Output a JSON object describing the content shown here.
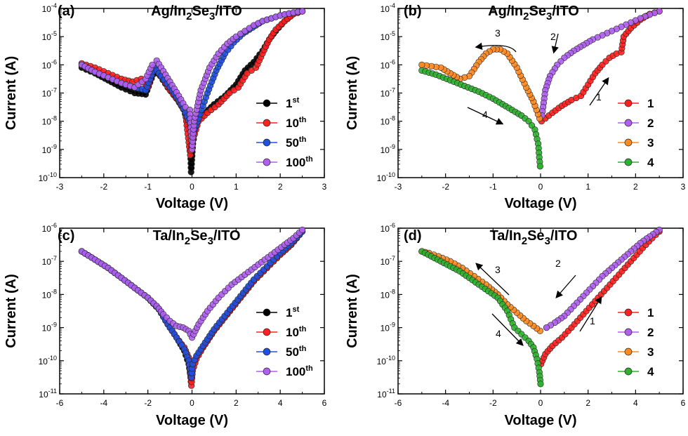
{
  "chart_data": [
    {
      "type": "scatter",
      "panel": "(a)",
      "title": "Ag/In2Se3/ITO",
      "title_parts": [
        "Ag/In",
        "2",
        "Se",
        "3",
        "/ITO"
      ],
      "xlabel": "Voltage (V)",
      "ylabel": "Current (A)",
      "xlim": [
        -3,
        3
      ],
      "ylim_exp": [
        -10,
        -4
      ],
      "y_scale": "log",
      "xticks": [
        "-3",
        "-2",
        "-1",
        "0",
        "1",
        "2",
        "3"
      ],
      "legend_position": "right-middle",
      "series": [
        {
          "name": "1",
          "sup": "st",
          "color": "#000000",
          "x": [
            -2.5,
            -2.2,
            -1.9,
            -1.6,
            -1.3,
            -1.05,
            -0.85,
            -0.72,
            -0.55,
            -0.35,
            -0.18,
            -0.05,
            -0.02,
            0.02,
            0.1,
            0.3,
            0.5,
            0.75,
            1.0,
            1.2,
            1.4,
            1.6,
            1.75,
            1.9,
            2.1,
            2.3,
            2.5
          ],
          "y": [
            -6.1,
            -6.3,
            -6.55,
            -6.8,
            -7.0,
            -7.05,
            -6.2,
            -6.4,
            -6.8,
            -7.2,
            -7.6,
            -8.4,
            -9.8,
            -8.8,
            -8.0,
            -7.7,
            -7.4,
            -7.1,
            -6.7,
            -6.2,
            -5.9,
            -5.5,
            -5.1,
            -4.8,
            -4.45,
            -4.2,
            -4.1
          ]
        },
        {
          "name": "10",
          "sup": "th",
          "color": "#ff2020",
          "x": [
            -2.5,
            -2.2,
            -1.9,
            -1.6,
            -1.35,
            -1.15,
            -1.0,
            -0.85,
            -0.7,
            -0.5,
            -0.3,
            -0.15,
            -0.04,
            0.03,
            0.15,
            0.35,
            0.6,
            0.85,
            1.05,
            1.25,
            1.45,
            1.6,
            1.75,
            1.9,
            2.1,
            2.3,
            2.5
          ],
          "y": [
            -5.95,
            -6.1,
            -6.3,
            -6.5,
            -6.6,
            -6.5,
            -6.8,
            -6.1,
            -6.4,
            -6.9,
            -7.3,
            -7.7,
            -9.2,
            -8.6,
            -8.0,
            -7.7,
            -7.4,
            -7.0,
            -6.8,
            -6.3,
            -6.1,
            -5.6,
            -5.1,
            -4.75,
            -4.45,
            -4.2,
            -4.1
          ]
        },
        {
          "name": "50",
          "sup": "th",
          "color": "#2050e0",
          "x": [
            -2.5,
            -2.2,
            -1.9,
            -1.6,
            -1.3,
            -1.05,
            -0.85,
            -0.7,
            -0.5,
            -0.3,
            -0.15,
            -0.04,
            0.03,
            0.15,
            0.35,
            0.55,
            0.75,
            0.95,
            1.15,
            1.3,
            1.45,
            1.6,
            1.8,
            2.0,
            2.2,
            2.4,
            2.5
          ],
          "y": [
            -6.0,
            -6.25,
            -6.45,
            -6.65,
            -6.8,
            -6.9,
            -6.1,
            -6.4,
            -6.8,
            -7.25,
            -7.7,
            -8.1,
            -8.4,
            -7.9,
            -7.0,
            -6.2,
            -5.6,
            -5.2,
            -4.9,
            -4.75,
            -4.6,
            -4.45,
            -4.35,
            -4.25,
            -4.18,
            -4.12,
            -4.1
          ]
        },
        {
          "name": "100",
          "sup": "th",
          "color": "#b060f0",
          "x": [
            -2.5,
            -2.2,
            -1.9,
            -1.6,
            -1.3,
            -1.05,
            -0.9,
            -0.8,
            -0.7,
            -0.5,
            -0.3,
            -0.15,
            -0.05,
            0.0,
            0.05,
            0.2,
            0.4,
            0.6,
            0.8,
            1.0,
            1.2,
            1.4,
            1.6,
            1.8,
            2.0,
            2.2,
            2.4,
            2.5
          ],
          "y": [
            -6.0,
            -6.25,
            -6.45,
            -6.65,
            -6.8,
            -6.5,
            -6.0,
            -5.85,
            -6.1,
            -6.6,
            -7.1,
            -7.5,
            -7.6,
            -9.0,
            -8.0,
            -6.9,
            -6.1,
            -5.6,
            -5.25,
            -5.0,
            -4.8,
            -4.6,
            -4.45,
            -4.35,
            -4.25,
            -4.18,
            -4.12,
            -4.1
          ]
        }
      ]
    },
    {
      "type": "scatter",
      "panel": "(b)",
      "title": "Ag/In2Se3/ITO",
      "title_parts": [
        "Ag/In",
        "2",
        "Se",
        "3",
        "/ITO"
      ],
      "xlabel": "Voltage (V)",
      "ylabel": "Current (A)",
      "xlim": [
        -3,
        3
      ],
      "ylim_exp": [
        -10,
        -4
      ],
      "y_scale": "log",
      "xticks": [
        "-3",
        "-2",
        "-1",
        "0",
        "1",
        "2",
        "3"
      ],
      "legend_position": "right-bottom",
      "annotations": [
        "1",
        "2",
        "3",
        "4"
      ],
      "series": [
        {
          "name": "1",
          "color": "#ff2020",
          "x": [
            0.02,
            0.1,
            0.25,
            0.45,
            0.65,
            0.85,
            1.0,
            1.15,
            1.3,
            1.45,
            1.6,
            1.7,
            1.75,
            1.9,
            2.1,
            2.3,
            2.5
          ],
          "y": [
            -8.0,
            -7.9,
            -7.7,
            -7.45,
            -7.25,
            -7.1,
            -6.7,
            -6.3,
            -6.0,
            -5.75,
            -5.6,
            -5.55,
            -5.0,
            -4.7,
            -4.4,
            -4.2,
            -4.1
          ]
        },
        {
          "name": "2",
          "color": "#b060f0",
          "x": [
            2.5,
            2.3,
            2.1,
            1.9,
            1.7,
            1.5,
            1.3,
            1.1,
            0.9,
            0.7,
            0.5,
            0.35,
            0.2,
            0.1,
            0.03
          ],
          "y": [
            -4.1,
            -4.22,
            -4.35,
            -4.5,
            -4.65,
            -4.8,
            -4.95,
            -5.1,
            -5.3,
            -5.5,
            -5.75,
            -6.0,
            -6.4,
            -6.9,
            -7.8
          ]
        },
        {
          "name": "3",
          "color": "#ff8a20",
          "x": [
            -0.02,
            -0.15,
            -0.3,
            -0.5,
            -0.7,
            -0.85,
            -1.0,
            -1.15,
            -1.3,
            -1.5,
            -1.7,
            -1.9,
            -2.1,
            -2.3,
            -2.5
          ],
          "y": [
            -7.9,
            -7.3,
            -6.8,
            -6.1,
            -5.6,
            -5.45,
            -5.45,
            -5.6,
            -5.9,
            -6.4,
            -6.5,
            -6.3,
            -6.1,
            -6.05,
            -6.0
          ]
        },
        {
          "name": "4",
          "color": "#30b030",
          "x": [
            -2.5,
            -2.2,
            -1.9,
            -1.6,
            -1.3,
            -1.0,
            -0.8,
            -0.6,
            -0.4,
            -0.25,
            -0.12,
            -0.05,
            -0.01
          ],
          "y": [
            -6.2,
            -6.35,
            -6.55,
            -6.75,
            -6.95,
            -7.2,
            -7.4,
            -7.6,
            -7.8,
            -8.0,
            -8.3,
            -8.8,
            -9.6
          ]
        }
      ]
    },
    {
      "type": "scatter",
      "panel": "(c)",
      "title": "Ta/In2Se3/ITO",
      "title_parts": [
        "Ta/In",
        "2",
        "Se",
        "3",
        "/ITO"
      ],
      "xlabel": "Voltage (V)",
      "ylabel": "Current (A)",
      "xlim": [
        -6,
        6
      ],
      "ylim_exp": [
        -11,
        -6
      ],
      "y_scale": "log",
      "xticks": [
        "-6",
        "-4",
        "-2",
        "0",
        "2",
        "4",
        "6"
      ],
      "legend_position": "right-bottom",
      "series": [
        {
          "name": "1",
          "sup": "st",
          "color": "#000000",
          "x": [
            -5.0,
            -4.4,
            -3.8,
            -3.2,
            -2.6,
            -2.0,
            -1.5,
            -1.1,
            -0.7,
            -0.35,
            -0.15,
            -0.03,
            0.03,
            0.2,
            0.5,
            1.0,
            1.6,
            2.2,
            2.8,
            3.4,
            4.0,
            4.5,
            5.0
          ],
          "y": [
            -6.7,
            -6.95,
            -7.2,
            -7.5,
            -7.8,
            -8.1,
            -8.45,
            -8.9,
            -9.3,
            -9.7,
            -10.1,
            -10.6,
            -10.2,
            -9.9,
            -9.6,
            -9.1,
            -8.6,
            -8.1,
            -7.6,
            -7.2,
            -6.8,
            -6.5,
            -6.1
          ]
        },
        {
          "name": "10",
          "sup": "th",
          "color": "#ff2020",
          "x": [
            -5.0,
            -4.4,
            -3.8,
            -3.2,
            -2.6,
            -2.0,
            -1.5,
            -1.1,
            -0.7,
            -0.35,
            -0.15,
            -0.03,
            0.03,
            0.2,
            0.5,
            1.0,
            1.6,
            2.2,
            2.8,
            3.4,
            4.0,
            4.5,
            5.0
          ],
          "y": [
            -6.7,
            -6.95,
            -7.2,
            -7.5,
            -7.8,
            -8.1,
            -8.45,
            -8.9,
            -9.3,
            -9.6,
            -9.9,
            -10.75,
            -10.3,
            -9.95,
            -9.6,
            -9.1,
            -8.6,
            -8.1,
            -7.6,
            -7.2,
            -6.8,
            -6.5,
            -6.1
          ]
        },
        {
          "name": "50",
          "sup": "th",
          "color": "#2050e0",
          "x": [
            -5.0,
            -4.4,
            -3.8,
            -3.2,
            -2.6,
            -2.0,
            -1.5,
            -1.1,
            -0.7,
            -0.35,
            -0.15,
            -0.03,
            0.03,
            0.2,
            0.5,
            1.0,
            1.6,
            2.2,
            2.8,
            3.4,
            4.0,
            4.5,
            5.0
          ],
          "y": [
            -6.7,
            -6.95,
            -7.2,
            -7.5,
            -7.8,
            -8.1,
            -8.45,
            -8.9,
            -9.3,
            -9.65,
            -10.0,
            -10.5,
            -10.1,
            -9.85,
            -9.55,
            -9.05,
            -8.55,
            -8.05,
            -7.55,
            -7.15,
            -6.75,
            -6.45,
            -6.1
          ]
        },
        {
          "name": "100",
          "sup": "th",
          "color": "#b060f0",
          "x": [
            -5.0,
            -4.4,
            -3.8,
            -3.2,
            -2.6,
            -2.0,
            -1.6,
            -1.3,
            -1.0,
            -0.7,
            -0.4,
            -0.15,
            0.0,
            0.3,
            0.7,
            1.2,
            1.8,
            2.4,
            3.0,
            3.6,
            4.2,
            4.6,
            5.0
          ],
          "y": [
            -6.7,
            -6.95,
            -7.2,
            -7.5,
            -7.8,
            -8.1,
            -8.35,
            -8.6,
            -8.8,
            -8.95,
            -9.0,
            -9.1,
            -9.3,
            -8.9,
            -8.5,
            -8.1,
            -7.7,
            -7.4,
            -7.1,
            -6.8,
            -6.5,
            -6.3,
            -6.05
          ]
        }
      ]
    },
    {
      "type": "scatter",
      "panel": "(d)",
      "title": "Ta/In2Se3/ITO",
      "title_parts": [
        "Ta/In",
        "2",
        "Se",
        "3",
        "/ITO"
      ],
      "xlabel": "Voltage (V)",
      "ylabel": "Current (A)",
      "xlim": [
        -6,
        6
      ],
      "ylim_exp": [
        -11,
        -6
      ],
      "y_scale": "log",
      "xticks": [
        "-6",
        "-4",
        "-2",
        "0",
        "2",
        "4",
        "6"
      ],
      "legend_position": "right-bottom",
      "annotations": [
        "1",
        "2",
        "3",
        "4"
      ],
      "series": [
        {
          "name": "1",
          "color": "#ff2020",
          "x": [
            0.02,
            0.2,
            0.5,
            0.9,
            1.3,
            1.8,
            2.3,
            2.8,
            3.3,
            3.8,
            4.3,
            4.7,
            5.0
          ],
          "y": [
            -10.1,
            -9.8,
            -9.55,
            -9.3,
            -9.0,
            -8.6,
            -8.2,
            -7.8,
            -7.4,
            -7.0,
            -6.6,
            -6.3,
            -6.1
          ]
        },
        {
          "name": "2",
          "color": "#b060f0",
          "x": [
            5.0,
            4.6,
            4.2,
            3.8,
            3.4,
            3.0,
            2.6,
            2.2,
            1.8,
            1.4,
            1.0,
            0.6,
            0.25
          ],
          "y": [
            -6.05,
            -6.25,
            -6.45,
            -6.7,
            -6.95,
            -7.2,
            -7.45,
            -7.75,
            -8.05,
            -8.35,
            -8.65,
            -8.85,
            -9.0
          ]
        },
        {
          "name": "3",
          "color": "#ff8a20",
          "x": [
            -0.02,
            -0.3,
            -0.6,
            -1.0,
            -1.4,
            -1.8,
            -2.3,
            -2.8,
            -3.3,
            -3.8,
            -4.3,
            -4.7,
            -5.0
          ],
          "y": [
            -9.1,
            -8.95,
            -8.8,
            -8.55,
            -8.3,
            -8.0,
            -7.7,
            -7.45,
            -7.2,
            -7.0,
            -6.85,
            -6.75,
            -6.7
          ]
        },
        {
          "name": "4",
          "color": "#30b030",
          "x": [
            -5.0,
            -4.6,
            -4.2,
            -3.8,
            -3.4,
            -3.0,
            -2.6,
            -2.2,
            -1.8,
            -1.4,
            -1.1,
            -0.8,
            -0.5,
            -0.3,
            -0.15,
            -0.05,
            0.0
          ],
          "y": [
            -6.7,
            -6.85,
            -7.0,
            -7.15,
            -7.3,
            -7.5,
            -7.7,
            -7.9,
            -8.1,
            -8.5,
            -9.0,
            -9.2,
            -9.4,
            -9.6,
            -9.95,
            -10.35,
            -10.7
          ]
        }
      ]
    }
  ]
}
